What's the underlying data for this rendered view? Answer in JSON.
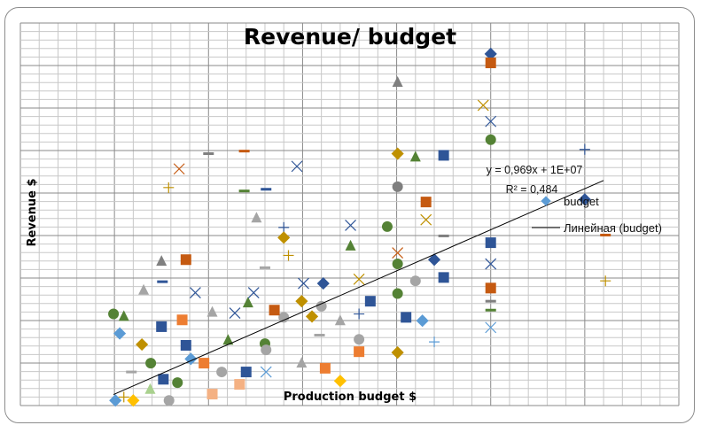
{
  "chart_data": {
    "type": "scatter",
    "title": "Revenue/ budget",
    "xlabel": "Production budget $",
    "ylabel": "Revenue $",
    "units_note_visible": false,
    "xlim": [
      0,
      350
    ],
    "ylim": [
      45,
      496
    ],
    "grid": true,
    "legend_placement": "right",
    "legend": [
      {
        "label": "budget",
        "marker": "diamond",
        "color": "#5B9BD5"
      },
      {
        "label": "Линейная (budget)",
        "marker": "line",
        "color": "#000000"
      }
    ],
    "trendline": {
      "slope": 0.969,
      "intercept": 10,
      "equation_label": "y = 0,969x + 1E+07",
      "r2_label": "R² = 0,484",
      "x_range": [
        49.5,
        310
      ]
    },
    "colors": [
      "#2F5597",
      "#C55A11",
      "#7F7F7F",
      "#BF9000",
      "#5B9BD5",
      "#548235",
      "#ED7D31",
      "#A5A5A5",
      "#FFC000",
      "#F4B183",
      "#A9D18E"
    ],
    "points": [
      [
        250,
        459.6,
        "diamond",
        0
      ],
      [
        250,
        449,
        "square",
        1
      ],
      [
        246,
        399,
        "x",
        3
      ],
      [
        250,
        380,
        "x",
        0
      ],
      [
        250,
        358.5,
        "circle",
        5
      ],
      [
        200.5,
        426,
        "triangle",
        2
      ],
      [
        200.5,
        342,
        "diamond",
        3
      ],
      [
        210,
        338,
        "triangle",
        5
      ],
      [
        225,
        340,
        "square",
        0
      ],
      [
        200.5,
        303,
        "circle",
        2
      ],
      [
        215.6,
        285,
        "square",
        1
      ],
      [
        215.6,
        264,
        "x",
        3
      ],
      [
        195,
        256,
        "circle",
        5
      ],
      [
        225,
        245,
        "dash",
        2
      ],
      [
        200.5,
        225,
        "x",
        1
      ],
      [
        200.5,
        212,
        "circle",
        5
      ],
      [
        220,
        217,
        "diamond",
        0
      ],
      [
        210,
        192,
        "circle",
        7
      ],
      [
        225,
        196,
        "square",
        0
      ],
      [
        200.5,
        177,
        "circle",
        5
      ],
      [
        250,
        237,
        "square",
        0
      ],
      [
        250,
        212,
        "x",
        0
      ],
      [
        250,
        183.5,
        "square",
        1
      ],
      [
        250,
        168,
        "dash",
        2
      ],
      [
        250,
        157.5,
        "dash",
        5
      ],
      [
        250,
        137,
        "x",
        4
      ],
      [
        300,
        347,
        "plus",
        0
      ],
      [
        300,
        288,
        "diamond",
        0
      ],
      [
        311,
        246,
        "dash",
        1
      ],
      [
        311,
        192,
        "plus",
        3
      ],
      [
        186,
        168,
        "square",
        0
      ],
      [
        205,
        149,
        "square",
        0
      ],
      [
        213.7,
        145,
        "diamond",
        4
      ],
      [
        220,
        120,
        "plus",
        4
      ],
      [
        200.5,
        107.5,
        "diamond",
        3
      ],
      [
        180,
        123,
        "circle",
        7
      ],
      [
        180,
        108.5,
        "square",
        6
      ],
      [
        170,
        145,
        "triangle",
        7
      ],
      [
        170,
        74,
        "diamond",
        8
      ],
      [
        162,
        89,
        "square",
        6
      ],
      [
        175.5,
        257.5,
        "x",
        0
      ],
      [
        175.5,
        233,
        "triangle",
        5
      ],
      [
        180,
        194,
        "x",
        3
      ],
      [
        180,
        153,
        "plus",
        0
      ],
      [
        161,
        189,
        "diamond",
        0
      ],
      [
        160,
        162,
        "circle",
        7
      ],
      [
        155,
        150,
        "diamond",
        3
      ],
      [
        150.5,
        189,
        "x",
        0
      ],
      [
        149.5,
        168,
        "diamond",
        3
      ],
      [
        140,
        149,
        "circle",
        7
      ],
      [
        140,
        255,
        "plus",
        0
      ],
      [
        140,
        243,
        "diamond",
        3
      ],
      [
        147,
        327,
        "x",
        0
      ],
      [
        142.5,
        222,
        "plus",
        3
      ],
      [
        130,
        207.5,
        "dash",
        7
      ],
      [
        119,
        298,
        "dash",
        5
      ],
      [
        130.6,
        300,
        "dash",
        0
      ],
      [
        119,
        345,
        "dash",
        1
      ],
      [
        100,
        342,
        "dash",
        2
      ],
      [
        125.5,
        266,
        "triangle",
        7
      ],
      [
        84.4,
        324,
        "x",
        1
      ],
      [
        78.8,
        302,
        "plus",
        3
      ],
      [
        75,
        215,
        "triangle",
        2
      ],
      [
        88,
        217,
        "square",
        1
      ],
      [
        65.5,
        181,
        "triangle",
        7
      ],
      [
        75.5,
        191,
        "dash",
        0
      ],
      [
        49.5,
        153,
        "circle",
        5
      ],
      [
        55,
        150,
        "triangle",
        5
      ],
      [
        52.8,
        130,
        "diamond",
        4
      ],
      [
        75,
        138,
        "square",
        0
      ],
      [
        86,
        146,
        "square",
        6
      ],
      [
        93,
        178,
        "x",
        0
      ],
      [
        102,
        155,
        "triangle",
        7
      ],
      [
        114,
        154,
        "x",
        0
      ],
      [
        121,
        166,
        "triangle",
        5
      ],
      [
        124,
        178,
        "x",
        0
      ],
      [
        135,
        157.5,
        "square",
        1
      ],
      [
        130,
        118,
        "circle",
        5
      ],
      [
        110.4,
        122,
        "triangle",
        5
      ],
      [
        88,
        116,
        "square",
        0
      ],
      [
        64.6,
        117,
        "diamond",
        3
      ],
      [
        90.6,
        100,
        "diamond",
        4
      ],
      [
        69.3,
        95,
        "circle",
        5
      ],
      [
        97.6,
        95,
        "square",
        6
      ],
      [
        107,
        84.6,
        "circle",
        7
      ],
      [
        120,
        84.6,
        "square",
        0
      ],
      [
        130.6,
        84.6,
        "x",
        4
      ],
      [
        59,
        84.6,
        "dash",
        7
      ],
      [
        76,
        76,
        "square",
        0
      ],
      [
        83.5,
        72,
        "circle",
        5
      ],
      [
        69,
        64,
        "triangle",
        10
      ],
      [
        55,
        55,
        "plus",
        3
      ],
      [
        60,
        51,
        "diamond",
        8
      ],
      [
        102,
        58.5,
        "square",
        9
      ],
      [
        79,
        51,
        "circle",
        7
      ],
      [
        50.5,
        51,
        "diamond",
        4
      ],
      [
        149.5,
        95,
        "triangle",
        7
      ],
      [
        116.5,
        70,
        "square",
        9
      ],
      [
        130.6,
        110.6,
        "circle",
        7
      ],
      [
        159,
        128,
        "dash",
        7
      ]
    ]
  }
}
